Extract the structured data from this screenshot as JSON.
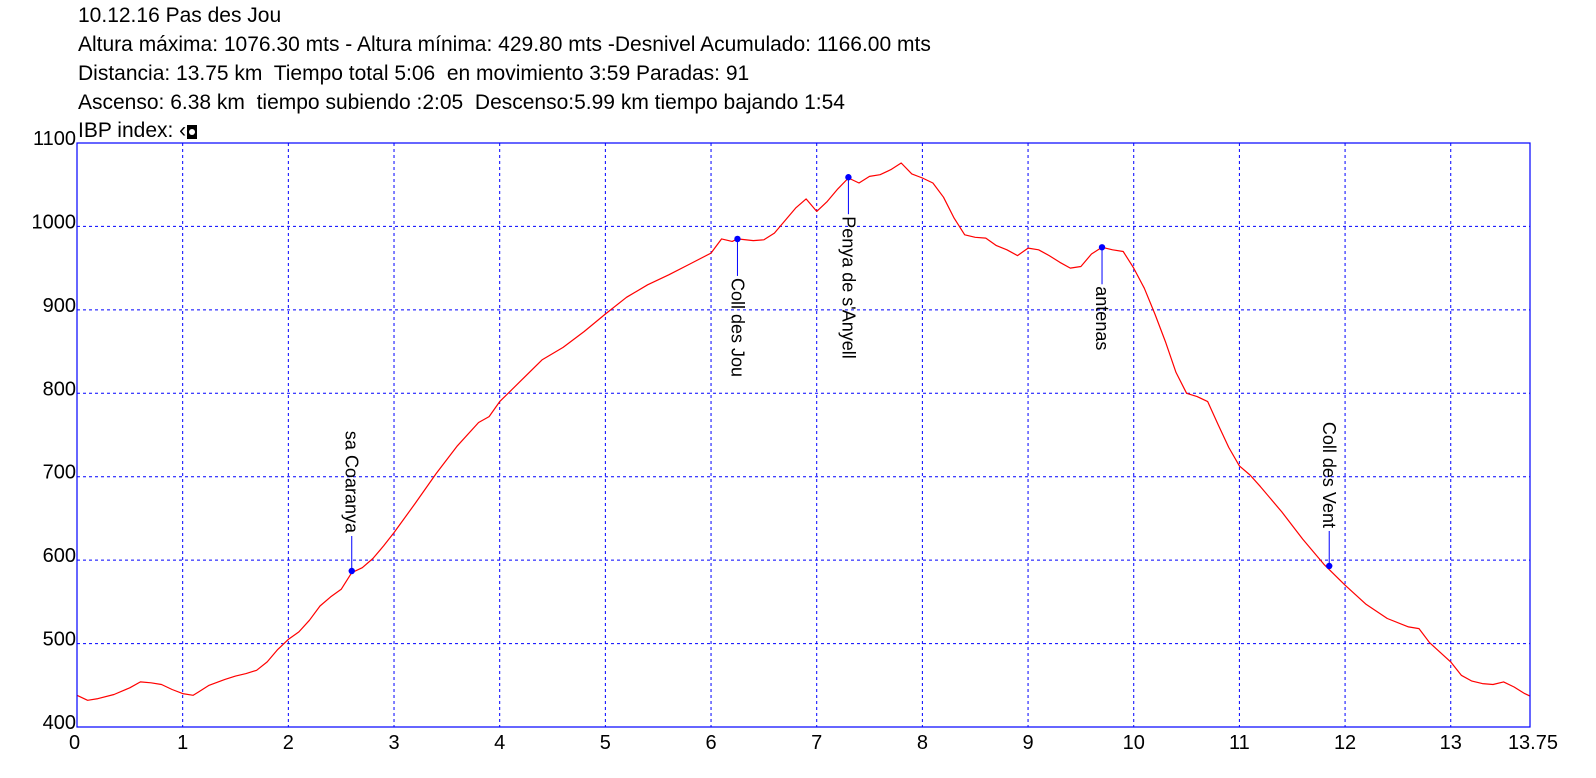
{
  "header": {
    "line1": "10.12.16 Pas des Jou",
    "line2": "Altura máxima: 1076.30 mts - Altura mínima: 429.80 mts -Desnivel Acumulado: 1166.00 mts",
    "line3": "Distancia: 13.75 km  Tiempo total 5:06  en movimiento 3:59 Paradas: 91",
    "line4": "Ascenso: 6.38 km  tiempo subiendo :2:05  Descenso:5.99 km tiempo bajando 1:54",
    "line5": "IBP index: ‹"
  },
  "colors": {
    "profile": "#ff0000",
    "frame": "#0000ff",
    "grid": "#0000ff",
    "waypoint": "#0000ff",
    "background": "#ffffff"
  },
  "chart_data": {
    "type": "line",
    "xlim": [
      0,
      13.75
    ],
    "ylim": [
      400,
      1100
    ],
    "x_ticks": [
      "0",
      "1",
      "2",
      "3",
      "4",
      "5",
      "6",
      "7",
      "8",
      "9",
      "10",
      "11",
      "12",
      "13",
      "13.75"
    ],
    "y_ticks": [
      "400",
      "500",
      "600",
      "700",
      "800",
      "900",
      "1000",
      "1100"
    ],
    "grid": true,
    "series": [
      {
        "points": [
          [
            0.0,
            438
          ],
          [
            0.1,
            432
          ],
          [
            0.2,
            434
          ],
          [
            0.35,
            439
          ],
          [
            0.5,
            447
          ],
          [
            0.6,
            454
          ],
          [
            0.7,
            453
          ],
          [
            0.8,
            451
          ],
          [
            0.9,
            445
          ],
          [
            1.0,
            440
          ],
          [
            1.1,
            438
          ],
          [
            1.15,
            442
          ],
          [
            1.25,
            450
          ],
          [
            1.4,
            457
          ],
          [
            1.5,
            461
          ],
          [
            1.6,
            464
          ],
          [
            1.7,
            468
          ],
          [
            1.8,
            478
          ],
          [
            1.9,
            493
          ],
          [
            2.0,
            505
          ],
          [
            2.1,
            514
          ],
          [
            2.2,
            528
          ],
          [
            2.3,
            545
          ],
          [
            2.4,
            556
          ],
          [
            2.5,
            565
          ],
          [
            2.6,
            585
          ],
          [
            2.7,
            591
          ],
          [
            2.8,
            602
          ],
          [
            2.9,
            617
          ],
          [
            3.0,
            633
          ],
          [
            3.2,
            668
          ],
          [
            3.4,
            704
          ],
          [
            3.6,
            737
          ],
          [
            3.8,
            765
          ],
          [
            3.9,
            772
          ],
          [
            4.0,
            790
          ],
          [
            4.2,
            815
          ],
          [
            4.4,
            840
          ],
          [
            4.6,
            855
          ],
          [
            4.8,
            874
          ],
          [
            5.0,
            895
          ],
          [
            5.2,
            915
          ],
          [
            5.4,
            930
          ],
          [
            5.6,
            942
          ],
          [
            5.8,
            955
          ],
          [
            6.0,
            968
          ],
          [
            6.1,
            985
          ],
          [
            6.2,
            982
          ],
          [
            6.25,
            985
          ],
          [
            6.4,
            983
          ],
          [
            6.5,
            984
          ],
          [
            6.6,
            992
          ],
          [
            6.7,
            1007
          ],
          [
            6.8,
            1022
          ],
          [
            6.9,
            1033
          ],
          [
            7.0,
            1018
          ],
          [
            7.1,
            1030
          ],
          [
            7.2,
            1045
          ],
          [
            7.3,
            1058
          ],
          [
            7.4,
            1052
          ],
          [
            7.5,
            1060
          ],
          [
            7.6,
            1062
          ],
          [
            7.7,
            1068
          ],
          [
            7.8,
            1076
          ],
          [
            7.9,
            1063
          ],
          [
            8.0,
            1058
          ],
          [
            8.1,
            1052
          ],
          [
            8.2,
            1035
          ],
          [
            8.3,
            1010
          ],
          [
            8.4,
            990
          ],
          [
            8.5,
            987
          ],
          [
            8.6,
            986
          ],
          [
            8.7,
            977
          ],
          [
            8.8,
            972
          ],
          [
            8.9,
            965
          ],
          [
            9.0,
            974
          ],
          [
            9.1,
            972
          ],
          [
            9.2,
            965
          ],
          [
            9.3,
            957
          ],
          [
            9.4,
            950
          ],
          [
            9.5,
            952
          ],
          [
            9.6,
            967
          ],
          [
            9.7,
            975
          ],
          [
            9.8,
            972
          ],
          [
            9.9,
            970
          ],
          [
            10.0,
            950
          ],
          [
            10.1,
            926
          ],
          [
            10.2,
            895
          ],
          [
            10.3,
            862
          ],
          [
            10.4,
            825
          ],
          [
            10.5,
            800
          ],
          [
            10.6,
            796
          ],
          [
            10.7,
            790
          ],
          [
            10.8,
            762
          ],
          [
            10.9,
            735
          ],
          [
            11.0,
            713
          ],
          [
            11.1,
            702
          ],
          [
            11.2,
            688
          ],
          [
            11.4,
            658
          ],
          [
            11.6,
            625
          ],
          [
            11.8,
            595
          ],
          [
            12.0,
            570
          ],
          [
            12.2,
            547
          ],
          [
            12.4,
            530
          ],
          [
            12.6,
            520
          ],
          [
            12.7,
            518
          ],
          [
            12.8,
            501
          ],
          [
            13.0,
            478
          ],
          [
            13.1,
            462
          ],
          [
            13.2,
            455
          ],
          [
            13.3,
            452
          ],
          [
            13.4,
            451
          ],
          [
            13.5,
            454
          ],
          [
            13.6,
            448
          ],
          [
            13.7,
            440
          ],
          [
            13.75,
            437
          ]
        ]
      }
    ],
    "waypoints": [
      {
        "label": "sa Coaranya",
        "x": 2.6,
        "y": 587
      },
      {
        "label": "Coll des Jou",
        "x": 6.25,
        "y": 985
      },
      {
        "label": "Penya de s'Anyell",
        "x": 7.3,
        "y": 1059
      },
      {
        "label": "antenas",
        "x": 9.7,
        "y": 975
      },
      {
        "label": "Coll des Vent",
        "x": 11.85,
        "y": 593
      }
    ]
  }
}
